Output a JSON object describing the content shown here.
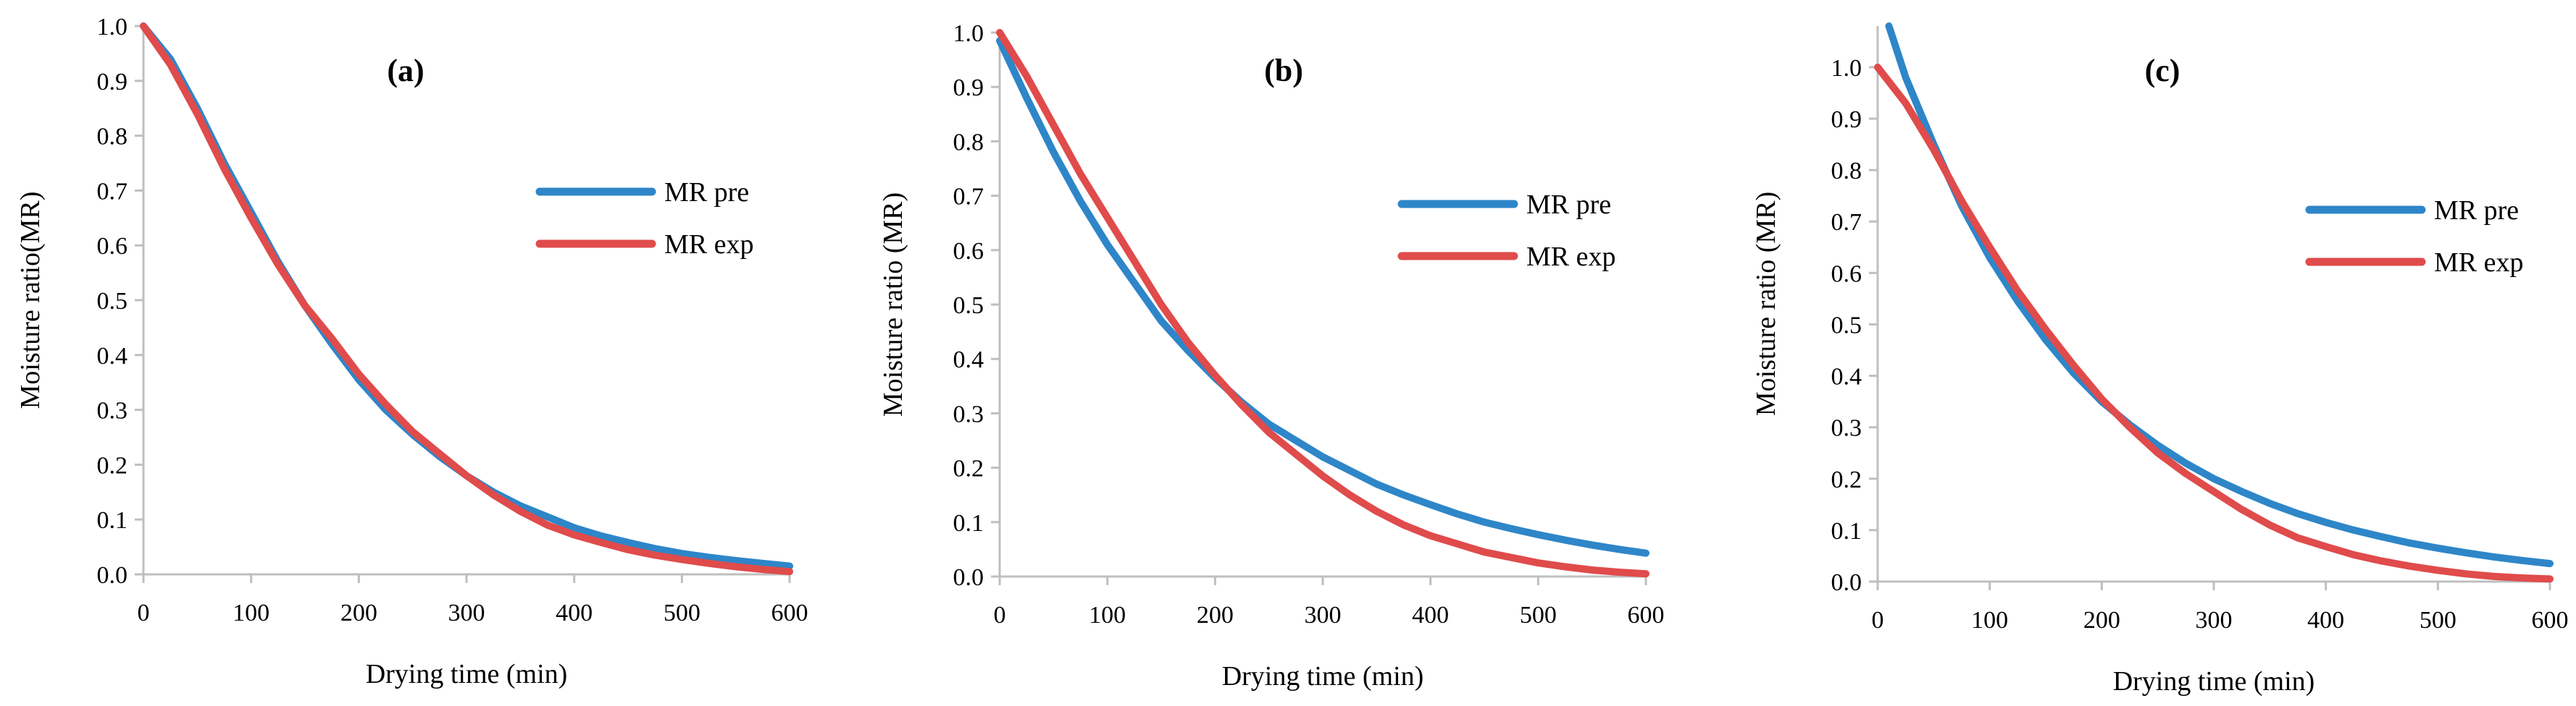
{
  "chart_data": [
    {
      "type": "line",
      "panel_label": "(a)",
      "xlabel": "Drying time (min)",
      "ylabel": "Moisture ratio(MR)",
      "xlim": [
        0,
        600
      ],
      "ylim": [
        0,
        1.0
      ],
      "xticks": [
        0,
        100,
        200,
        300,
        400,
        500,
        600
      ],
      "xtick_labels": [
        "0",
        "100",
        "200",
        "300",
        "400",
        "500",
        "600"
      ],
      "yticks": [
        0,
        0.1,
        0.2,
        0.3,
        0.4,
        0.5,
        0.6,
        0.7,
        0.8,
        0.9,
        1.0
      ],
      "ytick_labels": [
        "0.0",
        "0.1",
        "0.2",
        "0.3",
        "0.4",
        "0.5",
        "0.6",
        "0.7",
        "0.8",
        "0.9",
        "1.0"
      ],
      "legend_position": "upper-right",
      "series": [
        {
          "name": "MR pre",
          "color": "#2E86C8",
          "x": [
            0,
            25,
            50,
            75,
            100,
            125,
            150,
            175,
            200,
            225,
            250,
            275,
            300,
            325,
            350,
            375,
            400,
            425,
            450,
            475,
            500,
            525,
            550,
            575,
            600
          ],
          "y": [
            1.0,
            0.94,
            0.85,
            0.75,
            0.66,
            0.57,
            0.49,
            0.42,
            0.355,
            0.3,
            0.255,
            0.215,
            0.18,
            0.15,
            0.125,
            0.105,
            0.085,
            0.07,
            0.058,
            0.047,
            0.038,
            0.031,
            0.025,
            0.02,
            0.015
          ]
        },
        {
          "name": "MR exp",
          "color": "#E04B4B",
          "x": [
            0,
            25,
            50,
            75,
            100,
            125,
            150,
            175,
            200,
            225,
            250,
            275,
            300,
            325,
            350,
            375,
            400,
            425,
            450,
            475,
            500,
            525,
            550,
            575,
            600
          ],
          "y": [
            1.0,
            0.93,
            0.84,
            0.74,
            0.65,
            0.565,
            0.49,
            0.43,
            0.365,
            0.31,
            0.26,
            0.22,
            0.18,
            0.145,
            0.115,
            0.09,
            0.072,
            0.058,
            0.045,
            0.035,
            0.027,
            0.02,
            0.014,
            0.009,
            0.005
          ]
        }
      ]
    },
    {
      "type": "line",
      "panel_label": "(b)",
      "xlabel": "Drying time (min)",
      "ylabel": "Moisture ratio (MR)",
      "xlim": [
        0,
        600
      ],
      "ylim": [
        0,
        1.0
      ],
      "xticks": [
        0,
        100,
        200,
        300,
        400,
        500,
        600
      ],
      "xtick_labels": [
        "0",
        "100",
        "200",
        "300",
        "400",
        "500",
        "600"
      ],
      "yticks": [
        0,
        0.1,
        0.2,
        0.3,
        0.4,
        0.5,
        0.6,
        0.7,
        0.8,
        0.9,
        1.0
      ],
      "ytick_labels": [
        "0.0",
        "0.1",
        "0.2",
        "0.3",
        "0.4",
        "0.5",
        "0.6",
        "0.7",
        "0.8",
        "0.9",
        "1.0"
      ],
      "legend_position": "upper-right",
      "series": [
        {
          "name": "MR pre",
          "color": "#2E86C8",
          "x": [
            0,
            25,
            50,
            75,
            100,
            125,
            150,
            175,
            200,
            225,
            250,
            275,
            300,
            325,
            350,
            375,
            400,
            425,
            450,
            475,
            500,
            525,
            550,
            575,
            600
          ],
          "y": [
            0.985,
            0.88,
            0.78,
            0.69,
            0.61,
            0.54,
            0.47,
            0.415,
            0.365,
            0.32,
            0.28,
            0.25,
            0.22,
            0.195,
            0.17,
            0.15,
            0.132,
            0.115,
            0.1,
            0.088,
            0.077,
            0.067,
            0.058,
            0.05,
            0.043
          ]
        },
        {
          "name": "MR exp",
          "color": "#E04B4B",
          "x": [
            0,
            25,
            50,
            75,
            100,
            125,
            150,
            175,
            200,
            225,
            250,
            275,
            300,
            325,
            350,
            375,
            400,
            425,
            450,
            475,
            500,
            525,
            550,
            575,
            600
          ],
          "y": [
            1.0,
            0.92,
            0.83,
            0.74,
            0.66,
            0.58,
            0.5,
            0.43,
            0.37,
            0.315,
            0.265,
            0.225,
            0.185,
            0.15,
            0.12,
            0.095,
            0.075,
            0.06,
            0.045,
            0.035,
            0.025,
            0.018,
            0.012,
            0.008,
            0.005
          ]
        }
      ]
    },
    {
      "type": "line",
      "panel_label": "(c)",
      "xlabel": "Drying time (min)",
      "ylabel": "Moisture ratio (MR)",
      "xlim": [
        0,
        600
      ],
      "ylim": [
        0,
        1.08
      ],
      "xticks": [
        0,
        100,
        200,
        300,
        400,
        500,
        600
      ],
      "xtick_labels": [
        "0",
        "100",
        "200",
        "300",
        "400",
        "500",
        "600"
      ],
      "yticks": [
        0,
        0.1,
        0.2,
        0.3,
        0.4,
        0.5,
        0.6,
        0.7,
        0.8,
        0.9,
        1.0
      ],
      "ytick_labels": [
        "0.0",
        "0.1",
        "0.2",
        "0.3",
        "0.4",
        "0.5",
        "0.6",
        "0.7",
        "0.8",
        "0.9",
        "1.0"
      ],
      "legend_position": "upper-right",
      "series": [
        {
          "name": "MR pre",
          "color": "#2E86C8",
          "x": [
            10,
            25,
            50,
            75,
            100,
            125,
            150,
            175,
            200,
            225,
            250,
            275,
            300,
            325,
            350,
            375,
            400,
            425,
            450,
            475,
            500,
            525,
            550,
            575,
            600
          ],
          "y": [
            1.08,
            0.98,
            0.85,
            0.73,
            0.63,
            0.545,
            0.47,
            0.405,
            0.35,
            0.305,
            0.265,
            0.23,
            0.2,
            0.175,
            0.152,
            0.132,
            0.115,
            0.1,
            0.087,
            0.075,
            0.065,
            0.056,
            0.048,
            0.041,
            0.035
          ]
        },
        {
          "name": "MR exp",
          "color": "#E04B4B",
          "x": [
            0,
            25,
            50,
            75,
            100,
            125,
            150,
            175,
            200,
            225,
            250,
            275,
            300,
            325,
            350,
            375,
            400,
            425,
            450,
            475,
            500,
            525,
            550,
            575,
            600
          ],
          "y": [
            1.0,
            0.93,
            0.84,
            0.74,
            0.65,
            0.565,
            0.49,
            0.42,
            0.355,
            0.3,
            0.25,
            0.21,
            0.175,
            0.14,
            0.11,
            0.085,
            0.068,
            0.052,
            0.04,
            0.03,
            0.022,
            0.015,
            0.01,
            0.007,
            0.005
          ]
        }
      ]
    }
  ]
}
